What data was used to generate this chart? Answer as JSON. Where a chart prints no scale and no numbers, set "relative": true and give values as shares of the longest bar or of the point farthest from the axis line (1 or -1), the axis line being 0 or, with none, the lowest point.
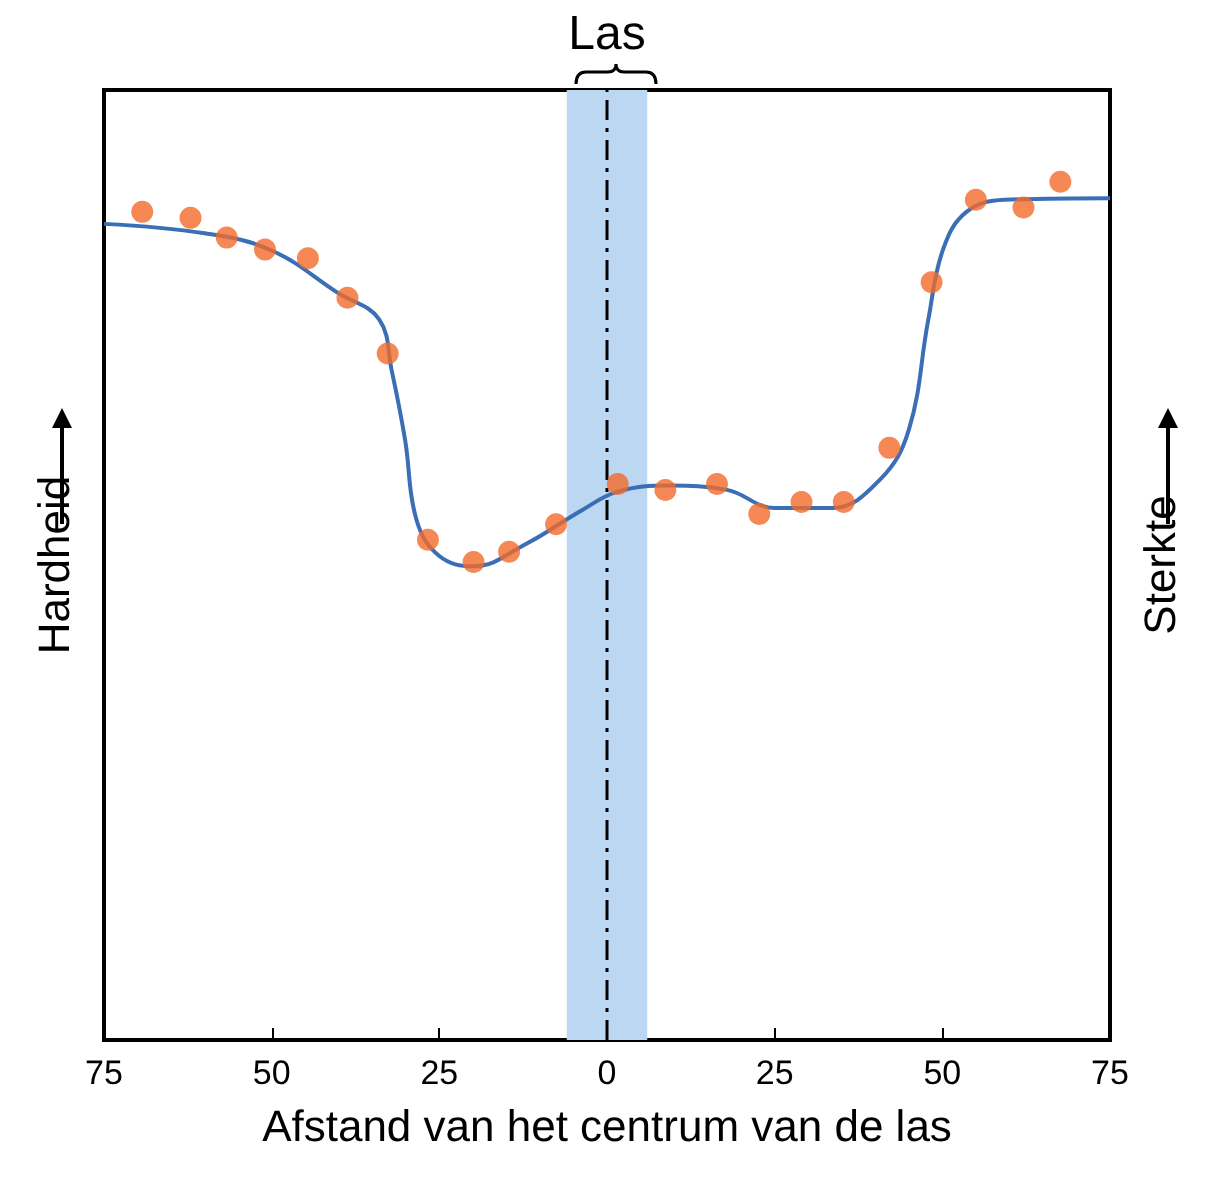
{
  "chart_data": {
    "type": "scatter",
    "relative": true,
    "xlabel": "Afstand van het centrum van de las",
    "ylabel": "Hardheid",
    "y2label": "Sterkte",
    "xlim": [
      -75,
      75
    ],
    "xticks": [
      {
        "value": -75,
        "label": "75"
      },
      {
        "value": -50,
        "label": "50"
      },
      {
        "value": -25,
        "label": "25"
      },
      0,
      25,
      50,
      75
    ],
    "grid": false,
    "series": [
      {
        "marker": "circle",
        "color": "#f26a2a",
        "x": [
          -69.3,
          -62.1,
          -56.7,
          -51,
          -44.6,
          -38.7,
          -32.7,
          -26.7,
          -19.9,
          -14.6,
          -7.6,
          1.6,
          8.7,
          16.4,
          22.7,
          29,
          35.3,
          42.1,
          48.4,
          55,
          62.1,
          67.6
        ],
        "values": [
          0.965,
          0.958,
          0.935,
          0.921,
          0.911,
          0.865,
          0.8,
          0.583,
          0.557,
          0.569,
          0.601,
          0.648,
          0.641,
          0.648,
          0.613,
          0.627,
          0.627,
          0.69,
          0.883,
          0.979,
          0.97,
          1
        ]
      },
      {
        "type": "line",
        "marker": "none",
        "line_style": "solid",
        "color": "#3a6fb5",
        "x": [
          -75,
          -60,
          -50,
          -40,
          -34,
          -32.1,
          -30.1,
          -28.4,
          -25,
          -19.9,
          -12.1,
          -3.6,
          1.6,
          9.3,
          17.9,
          25,
          33.6,
          40.7,
          45,
          47.9,
          50.1,
          53.6,
          59.3,
          75
        ],
        "values": [
          0.951,
          0.94,
          0.92,
          0.87,
          0.84,
          0.78,
          0.699,
          0.606,
          0.564,
          0.552,
          0.578,
          0.618,
          0.639,
          0.646,
          0.641,
          0.62,
          0.62,
          0.653,
          0.711,
          0.839,
          0.921,
          0.965,
          0.979,
          0.981
        ]
      }
    ],
    "bands": [
      {
        "axis": "x",
        "from": -6,
        "to": 6,
        "label": "Las",
        "color": "#bcd7f2"
      }
    ],
    "ref_lines": [
      {
        "axis": "x",
        "value": 0,
        "line_style": "dashdot",
        "color": "#000000"
      }
    ]
  }
}
